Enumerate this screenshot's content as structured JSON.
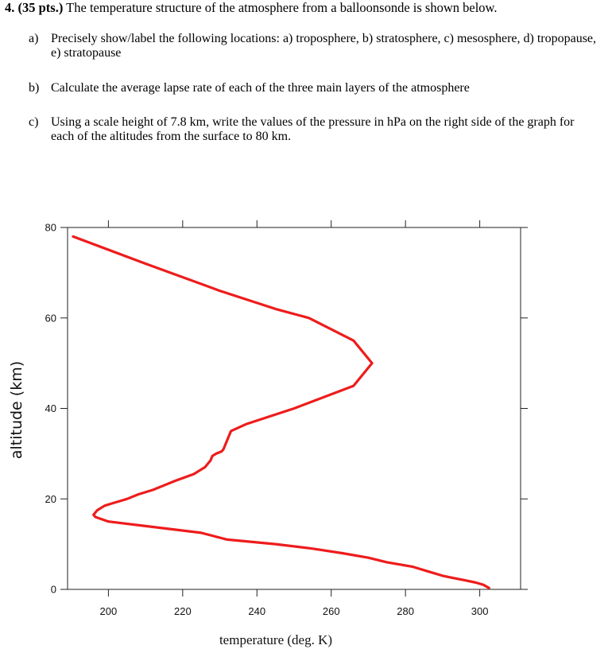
{
  "question": {
    "number_points": "4. (35 pts.)",
    "intro": " The temperature structure of the atmosphere from a balloonsonde is shown below.",
    "parts": [
      {
        "label": "a)",
        "text": "Precisely show/label the following locations: a) troposphere, b) stratosphere, c) mesosphere, d) tropopause, e) stratopause"
      },
      {
        "label": "b)",
        "text": "Calculate the average lapse rate of each of the three main layers of the atmosphere"
      },
      {
        "label": "c)",
        "text": "Using a scale height of 7.8 km, write the values of the pressure in hPa on the right side of the graph for each of the altitudes from the surface to 80 km."
      }
    ]
  },
  "chart_data": {
    "type": "line",
    "title": "",
    "xlabel": "temperature (deg. K)",
    "ylabel": "altitude (km)",
    "xlim": [
      189,
      311
    ],
    "ylim": [
      0,
      80
    ],
    "xticks": [
      200,
      220,
      240,
      260,
      280,
      300
    ],
    "yticks": [
      0,
      20,
      40,
      60,
      80
    ],
    "grid": false,
    "line_color": "#ee1c1c",
    "series": [
      {
        "x": [
          190.5,
          210,
          230,
          245,
          254,
          266,
          271,
          266,
          250,
          237,
          233,
          231,
          230.5,
          229,
          228,
          227.5,
          226,
          223,
          218,
          215,
          212,
          208,
          205,
          203,
          201,
          199,
          197,
          196,
          196.5,
          200,
          210,
          225,
          232,
          245,
          255,
          263,
          270,
          275,
          282,
          286,
          290,
          293,
          296,
          299,
          301,
          302.5
        ],
        "y": [
          78,
          72,
          66,
          62,
          60,
          55,
          50,
          45,
          40,
          36.5,
          35,
          31,
          30.5,
          30,
          29.5,
          28.5,
          27,
          25.5,
          24,
          23,
          22,
          21,
          20,
          19.5,
          19,
          18.5,
          17.5,
          16.5,
          16,
          15,
          14,
          12.5,
          11,
          10,
          9,
          8,
          7,
          6,
          5,
          4,
          3,
          2.5,
          2,
          1.5,
          1,
          0.3
        ]
      }
    ]
  }
}
